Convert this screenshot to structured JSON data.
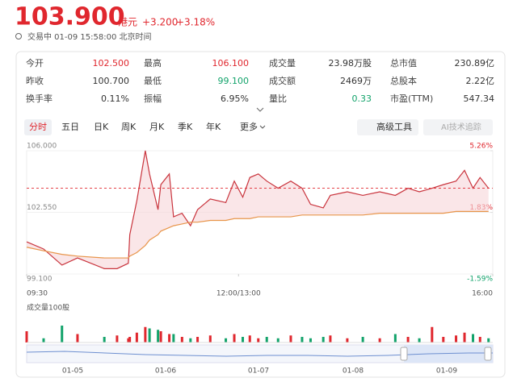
{
  "header": {
    "price": "103.900",
    "currency": "港元",
    "change": "+3.200",
    "change_pct": "+3.18%",
    "status": "交易中 01-09 15:58:00 北京时间"
  },
  "stats": [
    [
      {
        "label": "今开",
        "value": "102.500",
        "color": "#e0272e"
      },
      {
        "label": "最高",
        "value": "106.100",
        "color": "#e0272e"
      },
      {
        "label": "成交量",
        "value": "23.98万股",
        "color": "#333333"
      },
      {
        "label": "总市值",
        "value": "230.89亿",
        "color": "#333333"
      }
    ],
    [
      {
        "label": "昨收",
        "value": "100.700",
        "color": "#333333"
      },
      {
        "label": "最低",
        "value": "99.100",
        "color": "#13a36b"
      },
      {
        "label": "成交额",
        "value": "2469万",
        "color": "#333333"
      },
      {
        "label": "总股本",
        "value": "2.22亿",
        "color": "#333333"
      }
    ],
    [
      {
        "label": "换手率",
        "value": "0.11%",
        "color": "#333333"
      },
      {
        "label": "振幅",
        "value": "6.95%",
        "color": "#333333"
      },
      {
        "label": "量比",
        "value": "0.33",
        "color": "#13a36b"
      },
      {
        "label": "市盈(TTM)",
        "value": "547.34",
        "color": "#333333"
      }
    ]
  ],
  "tabs": [
    "分时",
    "五日",
    "日K",
    "周K",
    "月K",
    "季K",
    "年K",
    "更多"
  ],
  "tools": [
    "高级工具",
    "AI技术追踪"
  ],
  "chart_data": {
    "type": "line",
    "x": [
      0,
      12,
      25,
      36,
      55,
      64,
      72,
      73,
      78,
      84,
      87,
      93,
      95,
      101,
      104,
      110,
      116,
      121,
      130,
      141,
      147,
      153,
      158,
      164,
      170,
      178,
      187,
      195,
      201,
      210,
      215,
      227,
      238,
      250,
      261,
      270,
      278,
      287,
      295,
      304,
      310,
      316,
      321,
      327
    ],
    "xlim": [
      0,
      330
    ],
    "xticks": [
      {
        "value": 0,
        "label": "09:30"
      },
      {
        "value": 150,
        "label": "12:00/13:00"
      },
      {
        "value": 330,
        "label": "16:00"
      }
    ],
    "ylim": [
      99.1,
      106.0
    ],
    "yticks": [
      {
        "value": 99.1,
        "label": "99.100"
      },
      {
        "value": 102.55,
        "label": "102.550"
      },
      {
        "value": 106,
        "label": "106.000"
      }
    ],
    "y2lim": [
      -1.59,
      5.26
    ],
    "y2ticks": [
      {
        "value": -1.59,
        "label": "-1.59%"
      },
      {
        "value": 1.83,
        "label": "1.83%"
      },
      {
        "value": 5.26,
        "label": "5.26%"
      }
    ],
    "series": [
      {
        "color": "#c9343d",
        "values": [
          100.9,
          100.5,
          99.6,
          100.0,
          99.4,
          99.4,
          99.7,
          101.3,
          103.2,
          106.0,
          104.7,
          102.7,
          104.1,
          104.7,
          102.3,
          102.5,
          101.8,
          102.7,
          103.3,
          103.1,
          104.3,
          103.4,
          104.5,
          104.7,
          104.3,
          103.9,
          104.3,
          103.9,
          103.0,
          102.8,
          103.5,
          103.7,
          103.5,
          103.7,
          103.5,
          103.9,
          103.7,
          103.9,
          104.1,
          104.3,
          104.9,
          103.9,
          104.5,
          103.9
        ]
      },
      {
        "color": "#e8954a",
        "values": [
          100.6,
          100.4,
          100.2,
          100.1,
          100.0,
          100.0,
          100.0,
          100.1,
          100.3,
          100.7,
          101.0,
          101.3,
          101.5,
          101.7,
          101.8,
          101.9,
          102.0,
          102.0,
          102.1,
          102.1,
          102.2,
          102.2,
          102.2,
          102.3,
          102.3,
          102.3,
          102.3,
          102.4,
          102.4,
          102.4,
          102.4,
          102.4,
          102.4,
          102.5,
          102.5,
          102.5,
          102.5,
          102.5,
          102.5,
          102.6,
          102.6,
          102.6,
          102.6,
          102.6
        ]
      }
    ],
    "volume": {
      "label": "成交量100股",
      "ylim": [
        0,
        100
      ],
      "up_color": "#e0272e",
      "down_color": "#13a36b",
      "values": [
        40,
        15,
        60,
        30,
        20,
        25,
        15,
        20,
        35,
        55,
        50,
        45,
        40,
        30,
        30,
        20,
        15,
        20,
        25,
        15,
        30,
        20,
        25,
        15,
        20,
        15,
        25,
        20,
        15,
        20,
        25,
        15,
        20,
        15,
        30,
        20,
        15,
        55,
        20,
        25,
        35,
        30,
        20,
        15
      ]
    }
  },
  "navigator": {
    "dates": [
      "01-05",
      "01-06",
      "01-07",
      "01-08",
      "01-09"
    ]
  }
}
